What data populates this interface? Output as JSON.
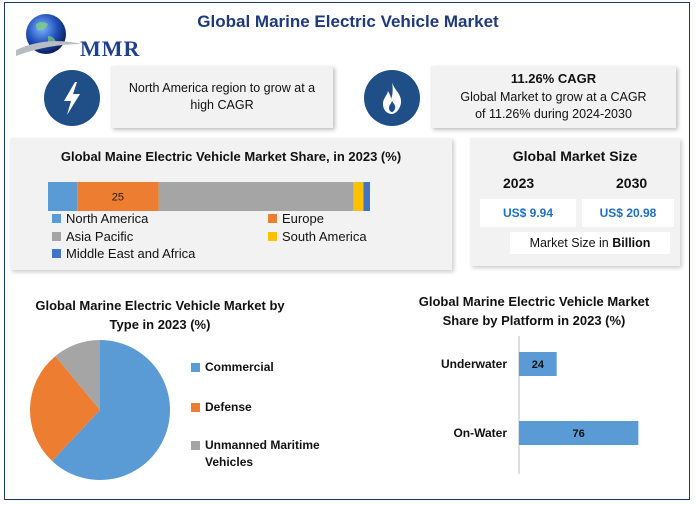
{
  "header": {
    "logo_text": "MMR",
    "title": "Global Marine Electric Vehicle Market"
  },
  "highlights": [
    {
      "icon": "lightning-icon",
      "text": "North America region to grow at a high CAGR"
    },
    {
      "icon": "flame-icon",
      "heading": "11.26% CAGR",
      "text": "Global Market to grow at a CAGR of 11.26% during 2024-2030"
    }
  ],
  "colors": {
    "north_america": "#5b9bd5",
    "europe": "#ed7d31",
    "asia_pacific": "#a5a5a5",
    "south_america": "#ffc000",
    "middle_east_africa": "#4472c4",
    "icon_circle": "#1f4f86",
    "value_text": "#1f6fc0"
  },
  "market_size": {
    "title": "Global Market Size",
    "year_1": "2023",
    "year_2": "2030",
    "value_1": "US$ 9.94",
    "value_2": "US$ 20.98",
    "unit_label": "Market Size in ",
    "unit_bold": "Billion"
  },
  "chart_data": [
    {
      "type": "bar",
      "orientation": "horizontal-stacked",
      "title": "Global Maine Electric Vehicle Market Share, in 2023 (%)",
      "series": [
        {
          "name": "North America",
          "value": 9
        },
        {
          "name": "Europe",
          "value": 25,
          "label": "25"
        },
        {
          "name": "Asia Pacific",
          "value": 60
        },
        {
          "name": "South America",
          "value": 3
        },
        {
          "name": "Middle East and Africa",
          "value": 2
        }
      ],
      "legend": "bottom"
    },
    {
      "type": "pie",
      "title": "Global Marine Electric Vehicle Market by Type in 2023 (%)",
      "slices": [
        {
          "name": "Commercial",
          "value": 62,
          "color": "#5b9bd5"
        },
        {
          "name": "Defense",
          "value": 27,
          "color": "#ed7d31"
        },
        {
          "name": "Unmanned Maritime Vehicles",
          "value": 11,
          "color": "#a5a5a5"
        }
      ],
      "legend": "right"
    },
    {
      "type": "bar",
      "orientation": "horizontal",
      "title": "Global Marine Electric Vehicle Market Share by Platform in 2023 (%)",
      "categories": [
        "Underwater",
        "On-Water"
      ],
      "values": [
        24,
        76
      ],
      "labels": [
        "24",
        "76"
      ],
      "color": "#5b9bd5"
    }
  ]
}
